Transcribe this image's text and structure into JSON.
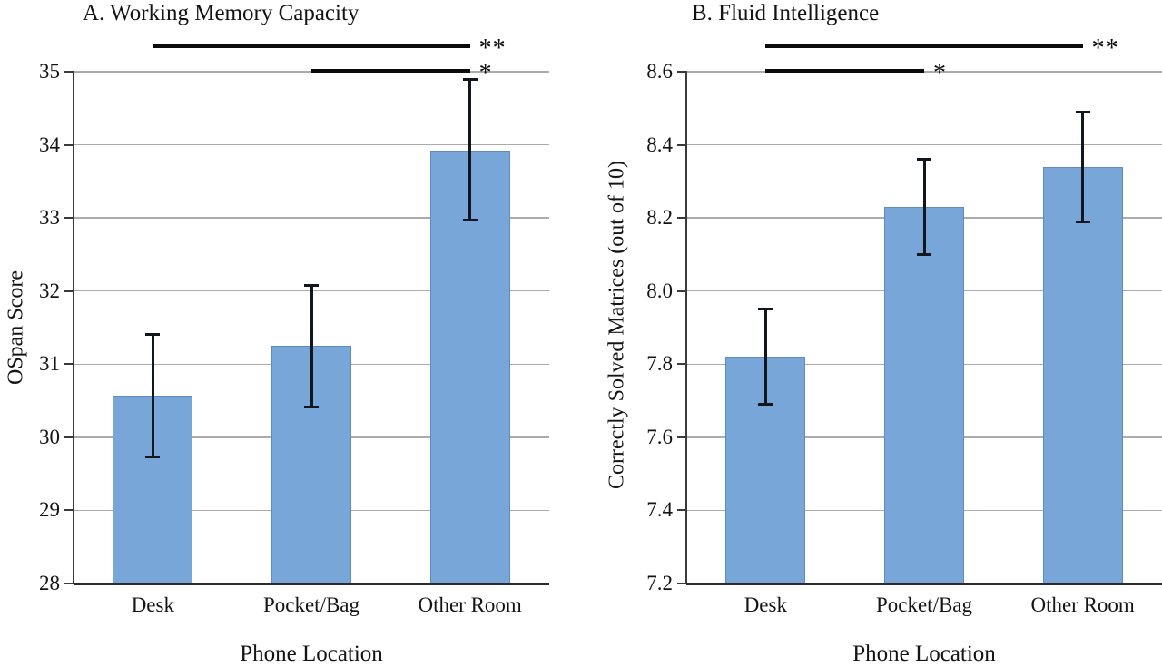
{
  "figure": {
    "background": "#ffffff",
    "text_color": "#1a1a1a",
    "grid_color": "#ababab",
    "axis_color": "#2e2e2e",
    "tick_color": "#3a3a3a",
    "significance_line_color": "#0b0b0b"
  },
  "chart_data": [
    {
      "type": "bar",
      "panel_label": "A",
      "title": "A. Working Memory Capacity",
      "xlabel": "Phone Location",
      "ylabel": "OSpan Score",
      "categories": [
        "Desk",
        "Pocket/Bag",
        "Other Room"
      ],
      "values": [
        30.57,
        31.25,
        33.92
      ],
      "error_low": [
        29.73,
        30.41,
        32.97
      ],
      "error_high": [
        31.41,
        32.08,
        34.9
      ],
      "ylim": [
        28,
        35
      ],
      "yticks": [
        {
          "value": 28,
          "label": "28"
        },
        {
          "value": 29,
          "label": "29"
        },
        {
          "value": 30,
          "label": "30"
        },
        {
          "value": 31,
          "label": "31"
        },
        {
          "value": 32,
          "label": "32"
        },
        {
          "value": 33,
          "label": "33"
        },
        {
          "value": 34,
          "label": "34"
        },
        {
          "value": 35,
          "label": "35"
        }
      ],
      "grid": true,
      "legend": "none",
      "bar_color": "#78A6D8",
      "bar_border_color": "#5E8CC0",
      "error_bar_color": "#12161E",
      "significance": [
        {
          "from": "Desk",
          "to": "Other Room",
          "label": "**"
        },
        {
          "from": "Pocket/Bag",
          "to": "Other Room",
          "label": "*"
        }
      ]
    },
    {
      "type": "bar",
      "panel_label": "B",
      "title": "B. Fluid Intelligence",
      "xlabel": "Phone Location",
      "ylabel": "Correctly Solved Matrices (out of 10)",
      "categories": [
        "Desk",
        "Pocket/Bag",
        "Other Room"
      ],
      "values": [
        7.82,
        8.23,
        8.34
      ],
      "error_low": [
        7.69,
        8.1,
        8.19
      ],
      "error_high": [
        7.95,
        8.36,
        8.49
      ],
      "ylim": [
        7.2,
        8.6
      ],
      "yticks": [
        {
          "value": 7.2,
          "label": "7.2"
        },
        {
          "value": 7.4,
          "label": "7.4"
        },
        {
          "value": 7.6,
          "label": "7.6"
        },
        {
          "value": 7.8,
          "label": "7.8"
        },
        {
          "value": 8.0,
          "label": "8.0"
        },
        {
          "value": 8.2,
          "label": "8.2"
        },
        {
          "value": 8.4,
          "label": "8.4"
        },
        {
          "value": 8.6,
          "label": "8.6"
        }
      ],
      "grid": true,
      "legend": "none",
      "bar_color": "#78A6D8",
      "bar_border_color": "#5E8CC0",
      "error_bar_color": "#12161E",
      "significance": [
        {
          "from": "Desk",
          "to": "Other Room",
          "label": "**"
        },
        {
          "from": "Desk",
          "to": "Pocket/Bag",
          "label": "*"
        }
      ]
    }
  ]
}
